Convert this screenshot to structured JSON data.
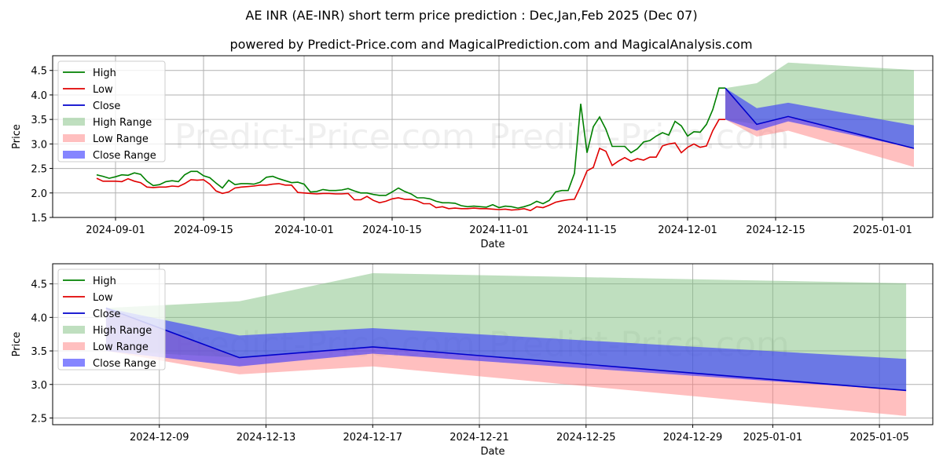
{
  "title": "AE INR (AE-INR) short term price prediction : Dec,Jan,Feb 2025 (Dec 07)",
  "subtitle": "powered by Predict-Price.com and MagicalPrediction.com and MagicalAnalysis.com",
  "watermark": "Predict-Price.com",
  "colors": {
    "high": "#008000",
    "low": "#e00000",
    "close": "#0000cc",
    "high_range": "#7fbf7f",
    "low_range": "#ff7f7f",
    "close_range": "#3333ff"
  },
  "legend_labels": [
    "High",
    "Low",
    "Close",
    "High Range",
    "Low Range",
    "Close Range"
  ],
  "chart_data": [
    {
      "type": "line",
      "name": "history-and-forecast",
      "xlabel": "Date",
      "ylabel": "Price",
      "xlim": [
        "2024-08-22",
        "2025-01-09"
      ],
      "ylim": [
        1.5,
        4.8
      ],
      "xticks": [
        "2024-09-01",
        "2024-09-15",
        "2024-10-01",
        "2024-10-15",
        "2024-11-01",
        "2024-11-15",
        "2024-12-01",
        "2024-12-15",
        "2025-01-01"
      ],
      "yticks": [
        1.5,
        2.0,
        2.5,
        3.0,
        3.5,
        4.0,
        4.5
      ],
      "x": [
        "2024-08-29",
        "2024-08-30",
        "2024-08-31",
        "2024-09-01",
        "2024-09-02",
        "2024-09-03",
        "2024-09-04",
        "2024-09-05",
        "2024-09-06",
        "2024-09-07",
        "2024-09-08",
        "2024-09-09",
        "2024-09-10",
        "2024-09-11",
        "2024-09-12",
        "2024-09-13",
        "2024-09-14",
        "2024-09-15",
        "2024-09-16",
        "2024-09-17",
        "2024-09-18",
        "2024-09-19",
        "2024-09-20",
        "2024-09-21",
        "2024-09-22",
        "2024-09-23",
        "2024-09-24",
        "2024-09-25",
        "2024-09-26",
        "2024-09-27",
        "2024-09-28",
        "2024-09-29",
        "2024-09-30",
        "2024-10-01",
        "2024-10-02",
        "2024-10-03",
        "2024-10-04",
        "2024-10-05",
        "2024-10-06",
        "2024-10-07",
        "2024-10-08",
        "2024-10-09",
        "2024-10-10",
        "2024-10-11",
        "2024-10-12",
        "2024-10-13",
        "2024-10-14",
        "2024-10-15",
        "2024-10-16",
        "2024-10-17",
        "2024-10-18",
        "2024-10-19",
        "2024-10-20",
        "2024-10-21",
        "2024-10-22",
        "2024-10-23",
        "2024-10-24",
        "2024-10-25",
        "2024-10-26",
        "2024-10-27",
        "2024-10-28",
        "2024-10-29",
        "2024-10-30",
        "2024-10-31",
        "2024-11-01",
        "2024-11-02",
        "2024-11-03",
        "2024-11-04",
        "2024-11-05",
        "2024-11-06",
        "2024-11-07",
        "2024-11-08",
        "2024-11-09",
        "2024-11-10",
        "2024-11-11",
        "2024-11-12",
        "2024-11-13",
        "2024-11-14",
        "2024-11-15",
        "2024-11-16",
        "2024-11-17",
        "2024-11-18",
        "2024-11-19",
        "2024-11-20",
        "2024-11-21",
        "2024-11-22",
        "2024-11-23",
        "2024-11-24",
        "2024-11-25",
        "2024-11-26",
        "2024-11-27",
        "2024-11-28",
        "2024-11-29",
        "2024-11-30",
        "2024-12-01",
        "2024-12-02",
        "2024-12-03",
        "2024-12-04",
        "2024-12-05",
        "2024-12-06",
        "2024-12-07"
      ],
      "series": [
        {
          "name": "High",
          "values": [
            2.37,
            2.34,
            2.3,
            2.33,
            2.37,
            2.36,
            2.41,
            2.38,
            2.24,
            2.15,
            2.17,
            2.23,
            2.25,
            2.23,
            2.37,
            2.44,
            2.44,
            2.35,
            2.31,
            2.2,
            2.1,
            2.26,
            2.17,
            2.19,
            2.19,
            2.18,
            2.22,
            2.32,
            2.34,
            2.29,
            2.25,
            2.21,
            2.22,
            2.18,
            2.02,
            2.03,
            2.07,
            2.05,
            2.05,
            2.06,
            2.09,
            2.04,
            2.0,
            2.0,
            1.97,
            1.95,
            1.95,
            2.02,
            2.1,
            2.03,
            1.98,
            1.9,
            1.9,
            1.88,
            1.83,
            1.8,
            1.8,
            1.79,
            1.74,
            1.72,
            1.73,
            1.72,
            1.71,
            1.76,
            1.7,
            1.73,
            1.72,
            1.69,
            1.72,
            1.76,
            1.83,
            1.78,
            1.85,
            2.02,
            2.05,
            2.05,
            2.4,
            3.82,
            2.82,
            3.35,
            3.55,
            3.3,
            2.95,
            2.95,
            2.95,
            2.82,
            2.9,
            3.04,
            3.07,
            3.16,
            3.23,
            3.18,
            3.46,
            3.37,
            3.16,
            3.25,
            3.24,
            3.4,
            3.7,
            4.14,
            4.14
          ]
        },
        {
          "name": "Low",
          "values": [
            2.3,
            2.24,
            2.24,
            2.24,
            2.23,
            2.29,
            2.24,
            2.21,
            2.12,
            2.11,
            2.12,
            2.12,
            2.14,
            2.13,
            2.19,
            2.27,
            2.26,
            2.27,
            2.18,
            2.04,
            1.99,
            2.02,
            2.1,
            2.12,
            2.13,
            2.14,
            2.16,
            2.16,
            2.18,
            2.19,
            2.16,
            2.16,
            2.01,
            2.0,
            1.99,
            1.98,
            1.99,
            1.99,
            1.98,
            1.98,
            1.99,
            1.86,
            1.86,
            1.93,
            1.85,
            1.8,
            1.83,
            1.88,
            1.9,
            1.87,
            1.87,
            1.84,
            1.78,
            1.78,
            1.7,
            1.72,
            1.68,
            1.69,
            1.68,
            1.68,
            1.69,
            1.68,
            1.68,
            1.67,
            1.66,
            1.67,
            1.65,
            1.66,
            1.68,
            1.64,
            1.72,
            1.7,
            1.75,
            1.81,
            1.84,
            1.86,
            1.87,
            2.14,
            2.45,
            2.52,
            2.91,
            2.85,
            2.56,
            2.65,
            2.72,
            2.65,
            2.7,
            2.67,
            2.73,
            2.73,
            2.96,
            3.0,
            3.02,
            2.82,
            2.93,
            3.0,
            2.93,
            2.96,
            3.27,
            3.5,
            3.5
          ]
        },
        {
          "name": "Close",
          "values": [
            null,
            null,
            null,
            null,
            null,
            null,
            null,
            null,
            null,
            null,
            null,
            null,
            null,
            null,
            null,
            null,
            null,
            null,
            null,
            null,
            null,
            null,
            null,
            null,
            null,
            null,
            null,
            null,
            null,
            null,
            null,
            null,
            null,
            null,
            null,
            null,
            null,
            null,
            null,
            null,
            null,
            null,
            null,
            null,
            null,
            null,
            null,
            null,
            null,
            null,
            null,
            null,
            null,
            null,
            null,
            null,
            null,
            null,
            null,
            null,
            null,
            null,
            null,
            null,
            null,
            null,
            null,
            null,
            null,
            null,
            null,
            null,
            null,
            null,
            null,
            null,
            null,
            null,
            null,
            null,
            null,
            null,
            null,
            null,
            null,
            null,
            null,
            null,
            null,
            null,
            null,
            null,
            null,
            null,
            null,
            null,
            null,
            null,
            null,
            null,
            4.14
          ]
        }
      ],
      "forecast": {
        "x": [
          "2024-12-07",
          "2024-12-12",
          "2024-12-17",
          "2025-01-06"
        ],
        "close": [
          4.14,
          3.4,
          3.56,
          2.91
        ],
        "high_range": {
          "upper": [
            4.14,
            4.24,
            4.66,
            4.51
          ],
          "lower": [
            3.5,
            3.4,
            3.56,
            2.91
          ]
        },
        "low_range": {
          "upper": [
            4.14,
            3.4,
            3.56,
            2.91
          ],
          "lower": [
            3.5,
            3.15,
            3.27,
            2.53
          ]
        },
        "close_range": {
          "upper": [
            4.14,
            3.73,
            3.84,
            3.38
          ],
          "lower": [
            3.5,
            3.27,
            3.46,
            2.91
          ]
        }
      }
    },
    {
      "type": "line",
      "name": "forecast-zoom",
      "xlabel": "Date",
      "ylabel": "Price",
      "xlim": [
        "2024-12-05",
        "2025-01-07"
      ],
      "ylim": [
        2.4,
        4.8
      ],
      "xticks": [
        "2024-12-09",
        "2024-12-13",
        "2024-12-17",
        "2024-12-21",
        "2024-12-25",
        "2024-12-29",
        "2025-01-01",
        "2025-01-05"
      ],
      "yticks": [
        2.5,
        3.0,
        3.5,
        4.0,
        4.5
      ],
      "x": [
        "2024-12-07",
        "2024-12-12",
        "2024-12-17",
        "2025-01-06"
      ],
      "series": [
        {
          "name": "Close",
          "values": [
            4.14,
            3.4,
            3.56,
            2.91
          ]
        }
      ],
      "high_range": {
        "upper": [
          4.14,
          4.24,
          4.66,
          4.51
        ],
        "lower": [
          3.5,
          3.4,
          3.56,
          2.91
        ]
      },
      "low_range": {
        "upper": [
          4.14,
          3.4,
          3.56,
          2.91
        ],
        "lower": [
          3.5,
          3.15,
          3.27,
          2.53
        ]
      },
      "close_range": {
        "upper": [
          4.14,
          3.73,
          3.84,
          3.38
        ],
        "lower": [
          3.5,
          3.27,
          3.46,
          2.91
        ]
      }
    }
  ]
}
